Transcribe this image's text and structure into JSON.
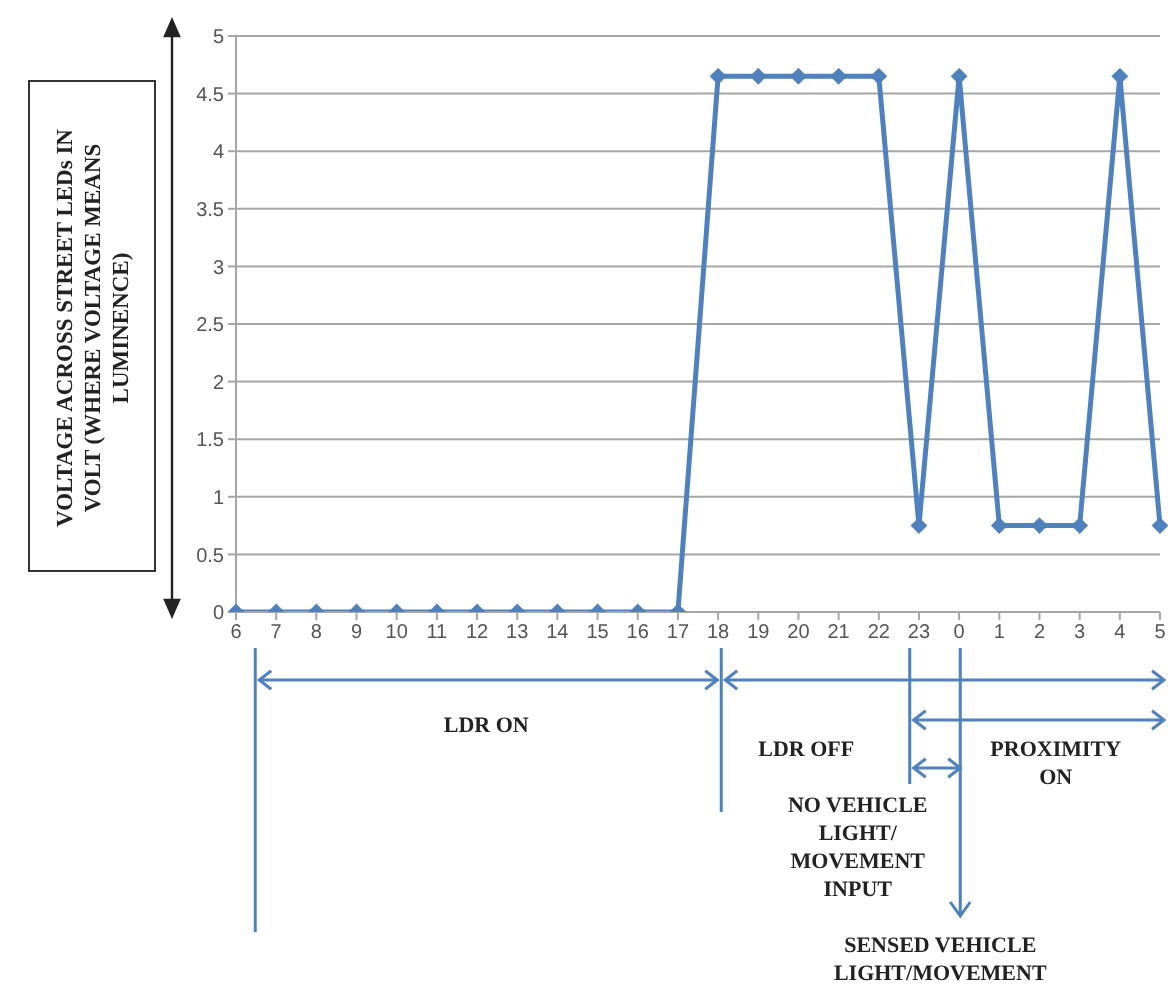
{
  "chart_data": {
    "type": "line",
    "ylabel": "VOLTAGE ACROSS STREET LEDs IN VOLT (WHERE VOLTAGE MEANS LUMINENCE)",
    "categories": [
      "6",
      "7",
      "8",
      "9",
      "10",
      "11",
      "12",
      "13",
      "14",
      "15",
      "16",
      "17",
      "18",
      "19",
      "20",
      "21",
      "22",
      "23",
      "0",
      "1",
      "2",
      "3",
      "4",
      "5"
    ],
    "series": [
      {
        "color": "#4f81bd",
        "values": [
          0,
          0,
          0,
          0,
          0,
          0,
          0,
          0,
          0,
          0,
          0,
          0,
          4.65,
          4.65,
          4.65,
          4.65,
          4.65,
          0.75,
          4.65,
          0.75,
          0.75,
          0.75,
          4.65,
          0.75
        ]
      }
    ],
    "ylim": [
      0,
      5
    ],
    "yticks": [
      0,
      0.5,
      1,
      1.5,
      2,
      2.5,
      3,
      3.5,
      4,
      4.5,
      5
    ],
    "grid": "y",
    "marker": "diamond",
    "line_style": "solid",
    "annotations": [
      "LDR ON",
      "LDR OFF",
      "PROXIMITY ON",
      "NO VEHICLE LIGHT/ MOVEMENT INPUT",
      "SENSED VEHICLE LIGHT/MOVEMENT"
    ]
  }
}
